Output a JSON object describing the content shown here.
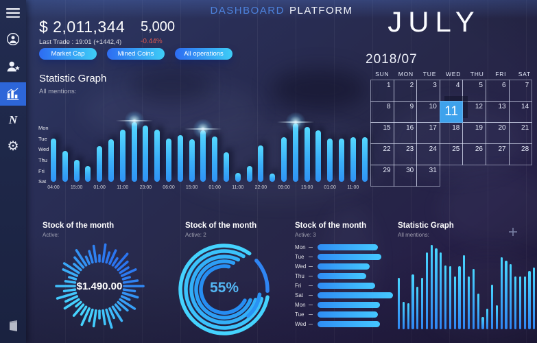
{
  "header": {
    "title_primary": "DASHBOARD",
    "title_secondary": "PLATFORM"
  },
  "sidebar": {
    "items": [
      {
        "icon": "menu-icon",
        "active": false
      },
      {
        "icon": "user-icon",
        "active": false
      },
      {
        "icon": "user-group-icon",
        "active": false
      },
      {
        "icon": "chart-icon",
        "active": true
      },
      {
        "icon": "n-logo-icon",
        "active": false
      },
      {
        "icon": "settings-icon",
        "active": false
      }
    ],
    "bottom_icon": "logout-icon",
    "n_logo_letter": "N",
    "gear_glyph": "⚙"
  },
  "stats": {
    "main_value": "$ 2,011,344",
    "main_caption": "Last Trade : 19:01 (+1442,4)",
    "secondary_value": "5,000",
    "secondary_change": "-0.44%",
    "negative_color": "#dd5950"
  },
  "filters": {
    "buttons": [
      "Market Cap",
      "Mined Coins",
      "All operations"
    ]
  },
  "calendar": {
    "month": "JULY",
    "period": "2018/07",
    "day_headers": [
      "SUN",
      "MON",
      "TUE",
      "WED",
      "THU",
      "FRI",
      "SAT"
    ],
    "weeks": [
      [
        1,
        2,
        3,
        4,
        5,
        6,
        7
      ],
      [
        8,
        9,
        10,
        11,
        12,
        13,
        14
      ],
      [
        15,
        16,
        17,
        18,
        19,
        20,
        21
      ],
      [
        22,
        23,
        24,
        25,
        26,
        27,
        28
      ],
      [
        29,
        30,
        31,
        null,
        null,
        null,
        null
      ]
    ],
    "selected_day": 11,
    "highlight_color": "#3ea2ec"
  },
  "theme": {
    "accent_cyan": "#3fd0f8",
    "accent_blue": "#2e6ff3",
    "sidebar_bg": "#1d2646",
    "sidebar_active": "#2d66d8",
    "bar_gradient_top": "#55d9ff",
    "bar_gradient_bottom": "#2f93f5"
  },
  "chart_data": [
    {
      "type": "bar",
      "title": "Statistic Graph",
      "subtitle": "All mentions:",
      "y_labels": [
        "Mon",
        "Tue",
        "Wed",
        "Thu",
        "Fri",
        "Sat"
      ],
      "x_labels": [
        "04:00",
        "15:00",
        "01:00",
        "11:00",
        "23:00",
        "06:00",
        "15:00",
        "01:00",
        "11:00",
        "22:00",
        "09:00",
        "15:00",
        "01:00",
        "11:00"
      ],
      "values": [
        63,
        45,
        32,
        23,
        52,
        62,
        76,
        87,
        82,
        76,
        63,
        68,
        62,
        75,
        66,
        43,
        13,
        23,
        53,
        12,
        65,
        85,
        80,
        75,
        63,
        63,
        65,
        65
      ],
      "glow_indices": [
        7,
        13,
        21
      ],
      "ylim": [
        0,
        90
      ],
      "legend": "none",
      "grid": "vertical-faint"
    },
    {
      "type": "radial-spikes",
      "title": "Stock of the month",
      "subtitle": "Active:",
      "center_label": "$1.490.00",
      "spoke_lengths": [
        28,
        16,
        22,
        12,
        25,
        18,
        10,
        24,
        15,
        27,
        20,
        11,
        23,
        17,
        26,
        13,
        21,
        9,
        24,
        18,
        28,
        16,
        27,
        14,
        10,
        22,
        25,
        13,
        19,
        26,
        11,
        17,
        23,
        9,
        25,
        15,
        21,
        12,
        26,
        18,
        14,
        22,
        10,
        20
      ]
    },
    {
      "type": "donut-arcs",
      "title": "Stock of the month",
      "subtitle": "Active: 2",
      "center_label": "55%",
      "percent": 55,
      "center_label_color": "#54b7f4",
      "rings": [
        {
          "r": 64,
          "a0": 100,
          "a1": 395,
          "color": "#45d3fe"
        },
        {
          "r": 56,
          "a0": 104,
          "a1": 390,
          "color": "#3bc2fb"
        },
        {
          "r": 48,
          "a0": 108,
          "a1": 385,
          "color": "#33b0f8"
        },
        {
          "r": 41,
          "a0": 112,
          "a1": 379,
          "color": "#2c9ef5"
        },
        {
          "r": 34,
          "a0": 118,
          "a1": 371,
          "color": "#268df2"
        }
      ],
      "extra_arcs": [
        {
          "r": 63,
          "a0": 48,
          "a1": 92,
          "color": "#2f85f3"
        },
        {
          "r": 52,
          "a0": 98,
          "a1": 138,
          "color": "#2a93f3"
        }
      ]
    },
    {
      "type": "hbar",
      "title": "Stock of the month",
      "subtitle": "Active: 3",
      "categories": [
        "Mon",
        "Tue",
        "Wed",
        "Thu",
        "Fri",
        "Sat",
        "Mon",
        "Tue",
        "Wed"
      ],
      "values": [
        88,
        93,
        76,
        71,
        84,
        110,
        91,
        88,
        91
      ],
      "xlim": [
        0,
        115
      ]
    },
    {
      "type": "bar",
      "title": "Statistic Graph",
      "subtitle": "All mentions:",
      "values": [
        75,
        40,
        38,
        80,
        62,
        75,
        112,
        123,
        118,
        112,
        93,
        92,
        77,
        92,
        108,
        77,
        88,
        52,
        18,
        30,
        65,
        35,
        105,
        100,
        95,
        77,
        77,
        77,
        85,
        90
      ],
      "ylim": [
        0,
        130
      ],
      "legend": "none"
    }
  ]
}
